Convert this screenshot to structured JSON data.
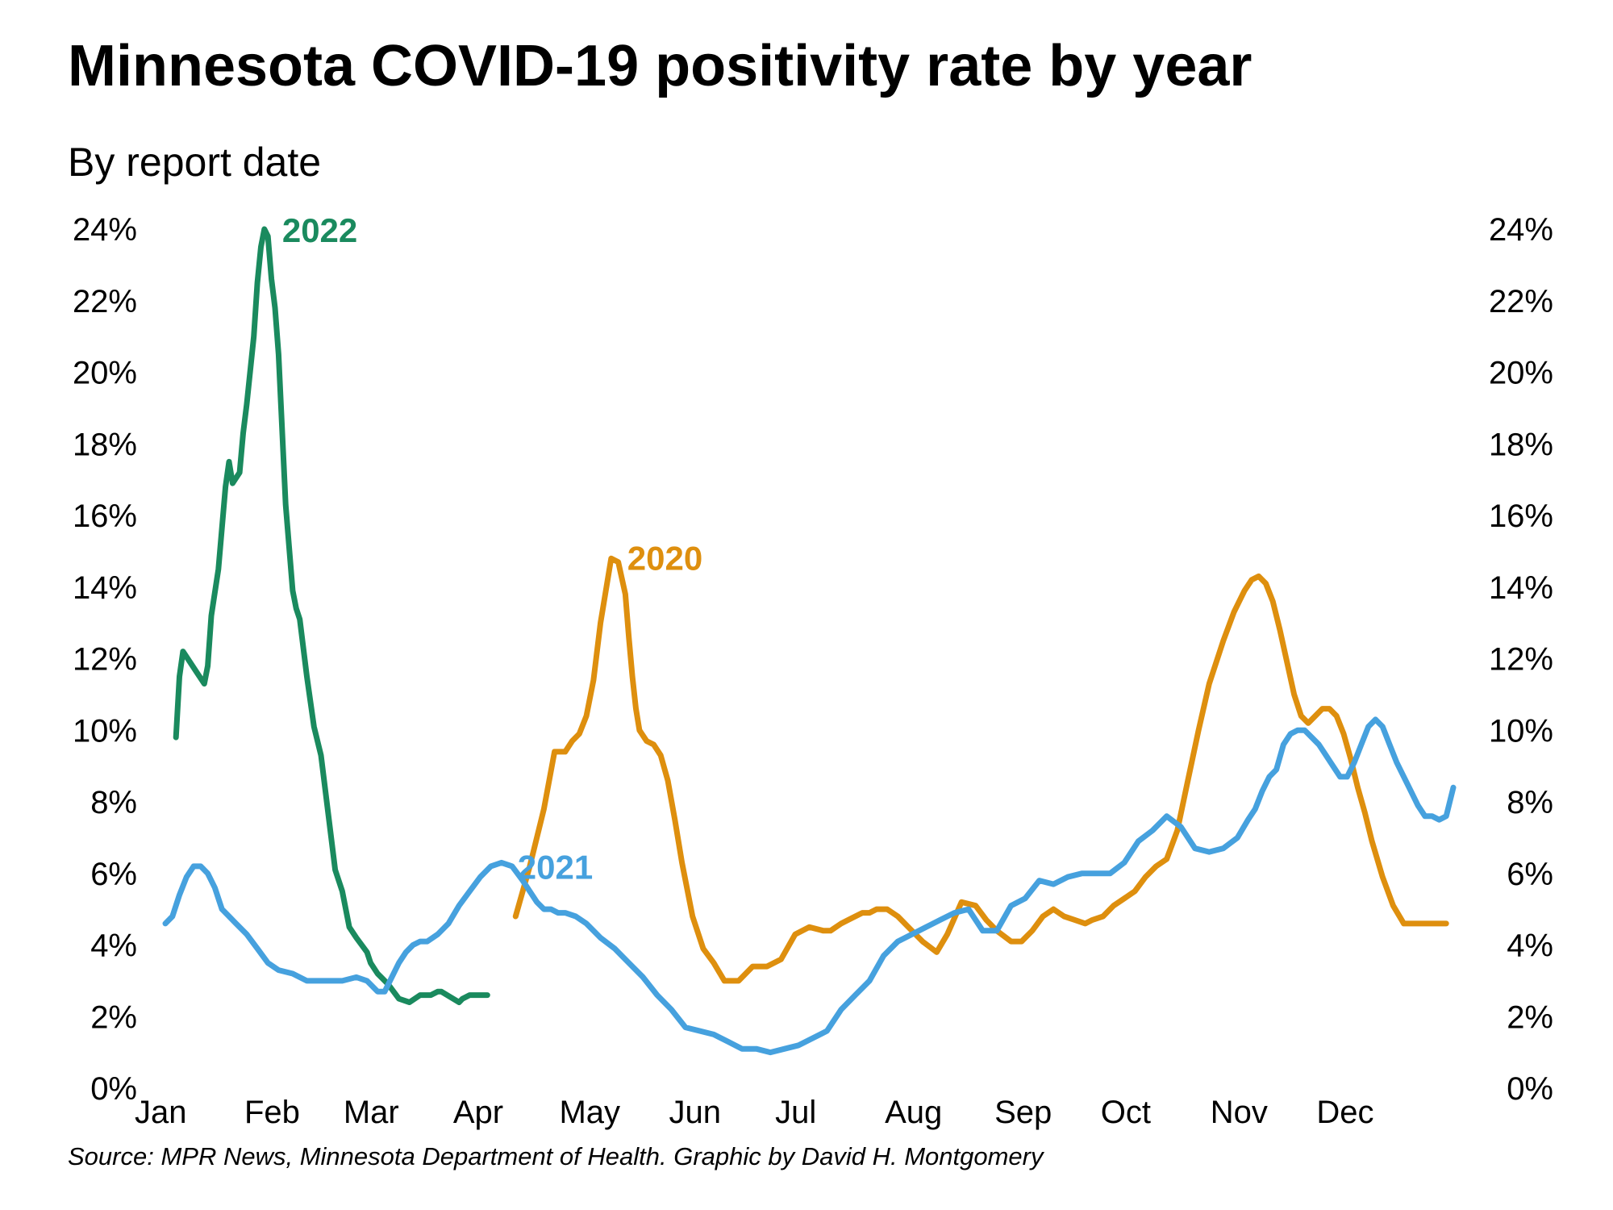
{
  "title": "Minnesota COVID-19 positivity rate by year",
  "subtitle": "By report date",
  "source": "Source: MPR News, Minnesota Department of Health. Graphic by David H. Montgomery",
  "chart_data": {
    "type": "line",
    "title": "Minnesota COVID-19 positivity rate by year",
    "subtitle": "By report date",
    "xlabel": "",
    "ylabel": "",
    "x_unit": "day of year",
    "xlim": [
      1,
      365
    ],
    "ylim": [
      0,
      24
    ],
    "grid": false,
    "legend": "direct labels at line peaks",
    "x_tick_labels": [
      "Jan",
      "Feb",
      "Mar",
      "Apr",
      "May",
      "Jun",
      "Jul",
      "Aug",
      "Sep",
      "Oct",
      "Nov",
      "Dec"
    ],
    "x_tick_values": [
      1,
      32,
      60,
      91,
      121,
      152,
      182,
      213,
      244,
      274,
      305,
      335
    ],
    "y_ticks": [
      0,
      2,
      4,
      6,
      8,
      10,
      12,
      14,
      16,
      18,
      20,
      22,
      24
    ],
    "y_tick_labels": [
      "0%",
      "2%",
      "4%",
      "6%",
      "8%",
      "10%",
      "12%",
      "14%",
      "16%",
      "18%",
      "20%",
      "22%",
      "24%"
    ],
    "series": [
      {
        "name": "2022",
        "color": "#1a8a5e",
        "x": [
          4,
          5,
          6,
          8,
          10,
          12,
          13,
          14,
          16,
          18,
          19,
          20,
          22,
          23,
          24,
          26,
          27,
          28,
          29,
          30,
          31,
          32,
          33,
          35,
          37,
          38,
          39,
          41,
          43,
          45,
          49,
          51,
          53,
          55,
          58,
          59,
          61,
          62,
          64,
          67,
          70,
          73,
          76,
          78,
          79,
          84,
          85,
          87,
          88,
          92
        ],
        "y": [
          9.8,
          11.5,
          12.2,
          11.9,
          11.6,
          11.3,
          11.8,
          13.2,
          14.5,
          16.8,
          17.5,
          16.9,
          17.2,
          18.3,
          19.1,
          21.0,
          22.5,
          23.5,
          24.0,
          23.8,
          22.6,
          21.8,
          20.5,
          16.3,
          13.9,
          13.4,
          13.1,
          11.5,
          10.1,
          9.3,
          6.1,
          5.5,
          4.5,
          4.2,
          3.8,
          3.5,
          3.2,
          3.1,
          2.9,
          2.5,
          2.4,
          2.6,
          2.6,
          2.7,
          2.7,
          2.4,
          2.5,
          2.6,
          2.6,
          2.6
        ]
      },
      {
        "name": "2020",
        "color": "#de8f0e",
        "x": [
          100,
          104,
          108,
          111,
          112,
          114,
          116,
          118,
          120,
          122,
          124,
          127,
          129,
          131,
          132,
          133,
          134,
          135,
          137,
          139,
          141,
          143,
          145,
          147,
          150,
          153,
          156,
          159,
          163,
          167,
          171,
          175,
          179,
          183,
          187,
          189,
          192,
          194,
          196,
          198,
          200,
          202,
          205,
          208,
          211,
          215,
          219,
          222,
          226,
          230,
          233,
          236,
          240,
          243,
          246,
          249,
          252,
          255,
          258,
          261,
          263,
          266,
          269,
          272,
          275,
          278,
          281,
          284,
          287,
          290,
          293,
          296,
          300,
          303,
          306,
          308,
          310,
          312,
          314,
          316,
          318,
          320,
          322,
          324,
          326,
          328,
          330,
          332,
          334,
          336,
          338,
          340,
          342,
          345,
          348,
          351,
          354,
          357,
          360,
          363
        ],
        "y": [
          4.8,
          6.2,
          7.8,
          9.4,
          9.4,
          9.4,
          9.7,
          9.9,
          10.4,
          11.4,
          13.0,
          14.8,
          14.7,
          13.8,
          12.6,
          11.5,
          10.6,
          10.0,
          9.7,
          9.6,
          9.3,
          8.6,
          7.5,
          6.3,
          4.8,
          3.9,
          3.5,
          3.0,
          3.0,
          3.4,
          3.4,
          3.6,
          4.3,
          4.5,
          4.4,
          4.4,
          4.6,
          4.7,
          4.8,
          4.9,
          4.9,
          5.0,
          5.0,
          4.8,
          4.5,
          4.1,
          3.8,
          4.3,
          5.2,
          5.1,
          4.7,
          4.4,
          4.1,
          4.1,
          4.4,
          4.8,
          5.0,
          4.8,
          4.7,
          4.6,
          4.7,
          4.8,
          5.1,
          5.3,
          5.5,
          5.9,
          6.2,
          6.4,
          7.2,
          8.6,
          10.0,
          11.3,
          12.5,
          13.3,
          13.9,
          14.2,
          14.3,
          14.1,
          13.6,
          12.8,
          11.9,
          11.0,
          10.4,
          10.2,
          10.4,
          10.6,
          10.6,
          10.4,
          9.9,
          9.2,
          8.4,
          7.7,
          6.9,
          5.9,
          5.1,
          4.6,
          4.6,
          4.6,
          4.6,
          4.6
        ]
      },
      {
        "name": "2021",
        "color": "#46a1de",
        "x": [
          1,
          3,
          5,
          7,
          9,
          11,
          13,
          15,
          17,
          19,
          21,
          24,
          27,
          30,
          33,
          37,
          41,
          45,
          48,
          51,
          55,
          58,
          61,
          63,
          65,
          67,
          69,
          71,
          73,
          75,
          78,
          81,
          84,
          87,
          90,
          93,
          96,
          99,
          102,
          104,
          106,
          108,
          110,
          112,
          114,
          117,
          120,
          124,
          128,
          132,
          136,
          140,
          144,
          148,
          152,
          156,
          160,
          164,
          168,
          172,
          176,
          180,
          184,
          188,
          192,
          196,
          200,
          204,
          208,
          212,
          216,
          220,
          224,
          228,
          232,
          236,
          240,
          244,
          248,
          252,
          256,
          260,
          264,
          268,
          272,
          276,
          280,
          284,
          288,
          292,
          296,
          300,
          304,
          307,
          309,
          311,
          313,
          315,
          317,
          319,
          321,
          323,
          325,
          327,
          329,
          331,
          333,
          335,
          337,
          339,
          341,
          343,
          345,
          347,
          349,
          351,
          353,
          355,
          357,
          359,
          361,
          363,
          365
        ],
        "y": [
          4.6,
          4.8,
          5.4,
          5.9,
          6.2,
          6.2,
          6.0,
          5.6,
          5.0,
          4.8,
          4.6,
          4.3,
          3.9,
          3.5,
          3.3,
          3.2,
          3.0,
          3.0,
          3.0,
          3.0,
          3.1,
          3.0,
          2.7,
          2.7,
          3.1,
          3.5,
          3.8,
          4.0,
          4.1,
          4.1,
          4.3,
          4.6,
          5.1,
          5.5,
          5.9,
          6.2,
          6.3,
          6.2,
          5.8,
          5.5,
          5.2,
          5.0,
          5.0,
          4.9,
          4.9,
          4.8,
          4.6,
          4.2,
          3.9,
          3.5,
          3.1,
          2.6,
          2.2,
          1.7,
          1.6,
          1.5,
          1.3,
          1.1,
          1.1,
          1.0,
          1.1,
          1.2,
          1.4,
          1.6,
          2.2,
          2.6,
          3.0,
          3.7,
          4.1,
          4.3,
          4.5,
          4.7,
          4.9,
          5.0,
          4.4,
          4.4,
          5.1,
          5.3,
          5.8,
          5.7,
          5.9,
          6.0,
          6.0,
          6.0,
          6.3,
          6.9,
          7.2,
          7.6,
          7.3,
          6.7,
          6.6,
          6.7,
          7.0,
          7.5,
          7.8,
          8.3,
          8.7,
          8.9,
          9.6,
          9.9,
          10.0,
          10.0,
          9.8,
          9.6,
          9.3,
          9.0,
          8.7,
          8.7,
          9.1,
          9.6,
          10.1,
          10.3,
          10.1,
          9.6,
          9.1,
          8.7,
          8.3,
          7.9,
          7.6,
          7.6,
          7.5,
          7.6,
          8.4
        ]
      }
    ],
    "annotations": [
      {
        "series": "2022",
        "text": "2022",
        "at": "peak"
      },
      {
        "series": "2020",
        "text": "2020",
        "at": "spring peak"
      },
      {
        "series": "2021",
        "text": "2021",
        "at": "April peak"
      }
    ]
  }
}
